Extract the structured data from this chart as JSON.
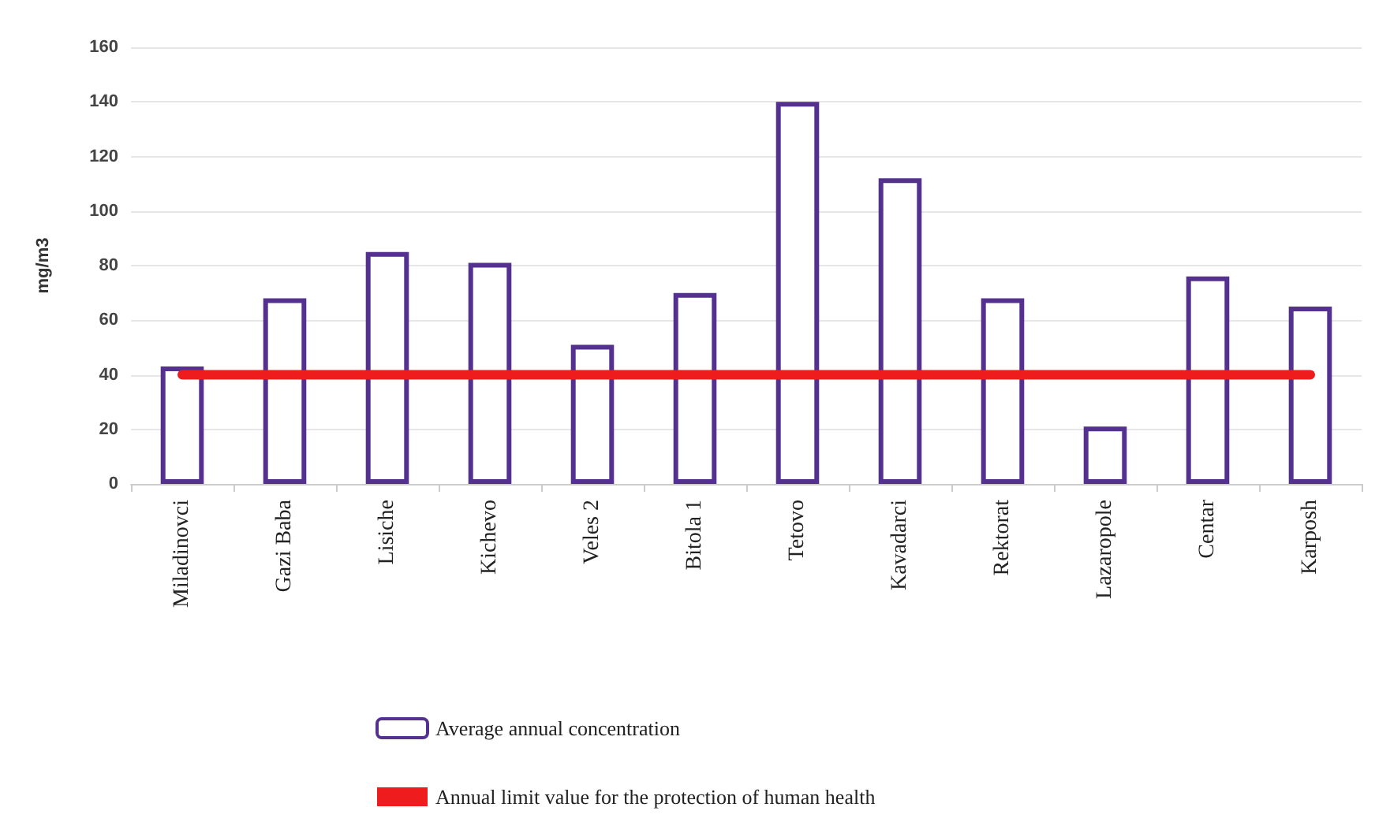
{
  "chart_data": {
    "type": "bar",
    "ylabel": "mg/m3",
    "categories": [
      "Miladinovci",
      "Gazi Baba",
      "Lisiche",
      "Kichevo",
      "Veles 2",
      "Bitola 1",
      "Tetovo",
      "Kavadarci",
      "Rektorat",
      "Lazaropole",
      "Centar",
      "Karposh"
    ],
    "series": [
      {
        "name": "Average annual concentration",
        "color": "#54318f",
        "values": [
          43,
          68,
          85,
          81,
          51,
          70,
          140,
          112,
          68,
          21,
          76,
          65
        ]
      },
      {
        "type": "line",
        "name": "Annual limit value for the protection of human health",
        "color": "#ee1c1c",
        "values": [
          40,
          40,
          40,
          40,
          40,
          40,
          40,
          40,
          40,
          40,
          40,
          40
        ]
      }
    ],
    "ylim": [
      0,
      160
    ],
    "yticks": [
      0,
      20,
      40,
      60,
      80,
      100,
      120,
      140,
      160
    ],
    "grid": "y",
    "legend": "bottom",
    "marker": "none",
    "line_style": "solid"
  }
}
